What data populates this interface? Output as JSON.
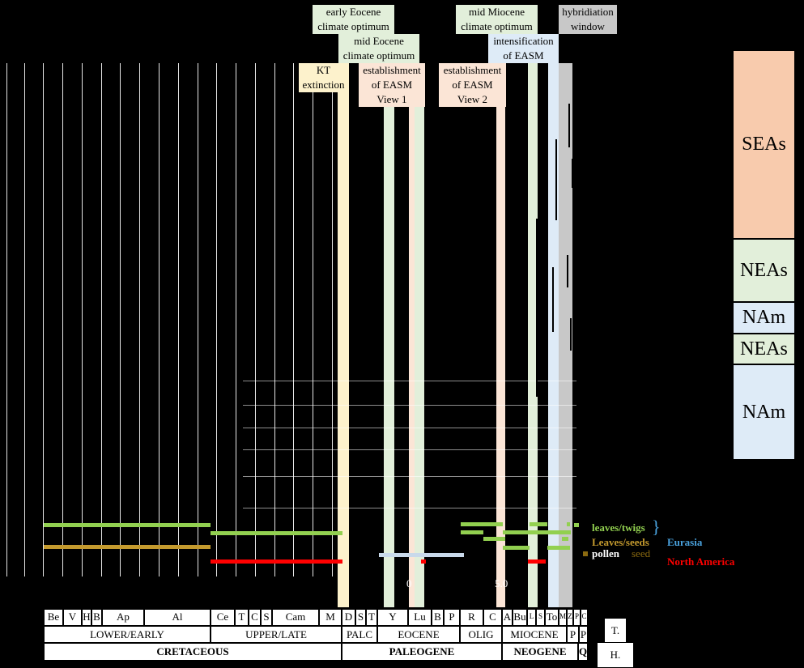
{
  "bands": [
    {
      "label": "KT\nextinction",
      "color": "#fdf2cc"
    },
    {
      "label": "early Eocene\nclimate optimum",
      "color": "#e2efda"
    },
    {
      "label": "mid Eocene\nclimate optimum",
      "color": "#e2efda"
    },
    {
      "label": "establishment\nof EASM\nView 1",
      "color": "#fbe5d6"
    },
    {
      "label": "establishment\nof EASM\nView 2",
      "color": "#fbe5d6"
    },
    {
      "label": "mid Miocene\nclimate optimum",
      "color": "#e2efda"
    },
    {
      "label": "intensification\nof EASM",
      "color": "#deebf7"
    },
    {
      "label": "hybridiation\nwindow",
      "color": "#c8c8c8"
    }
  ],
  "axis": {
    "tick_0": "0",
    "tick_5": "5.0"
  },
  "regions": [
    {
      "label": "SEAs",
      "color": "#f8cbad"
    },
    {
      "label": "NEAs",
      "color": "#e2efda"
    },
    {
      "label": "NAm",
      "color": "#deebf7"
    },
    {
      "label": "NEAs",
      "color": "#e2efda"
    },
    {
      "label": "NAm",
      "color": "#deebf7"
    }
  ],
  "legend": {
    "leaves_twigs": "leaves/twigs",
    "leaves_seeds": "Leaves/seeds",
    "pollen": "pollen",
    "seed": "seed",
    "eurasia": "Eurasia",
    "north_america": "North America",
    "colors": {
      "green": "#92d050",
      "brown": "#c49a2e",
      "pale_blue": "#c9d9ea",
      "red": "#ff0000",
      "blue": "#4aa3df"
    }
  },
  "stages": [
    "Be",
    "V",
    "H",
    "B",
    "Ap",
    "Al",
    "Ce",
    "T",
    "C",
    "S",
    "Cam",
    "M",
    "D",
    "S",
    "T",
    "Y",
    "Lu",
    "B",
    "P",
    "R",
    "C",
    "A",
    "Bu",
    "L",
    "S",
    "To",
    "M",
    "Z",
    "P",
    "C"
  ],
  "epochs": [
    "LOWER/EARLY",
    "UPPER/LATE",
    "PALC",
    "EOCENE",
    "OLIG",
    "MIOCENE",
    "P",
    "P"
  ],
  "periods": [
    "CRETACEOUS",
    "PALEOGENE",
    "NEOGENE",
    "Q"
  ],
  "tips": {
    "t": "T.",
    "h": "H."
  }
}
